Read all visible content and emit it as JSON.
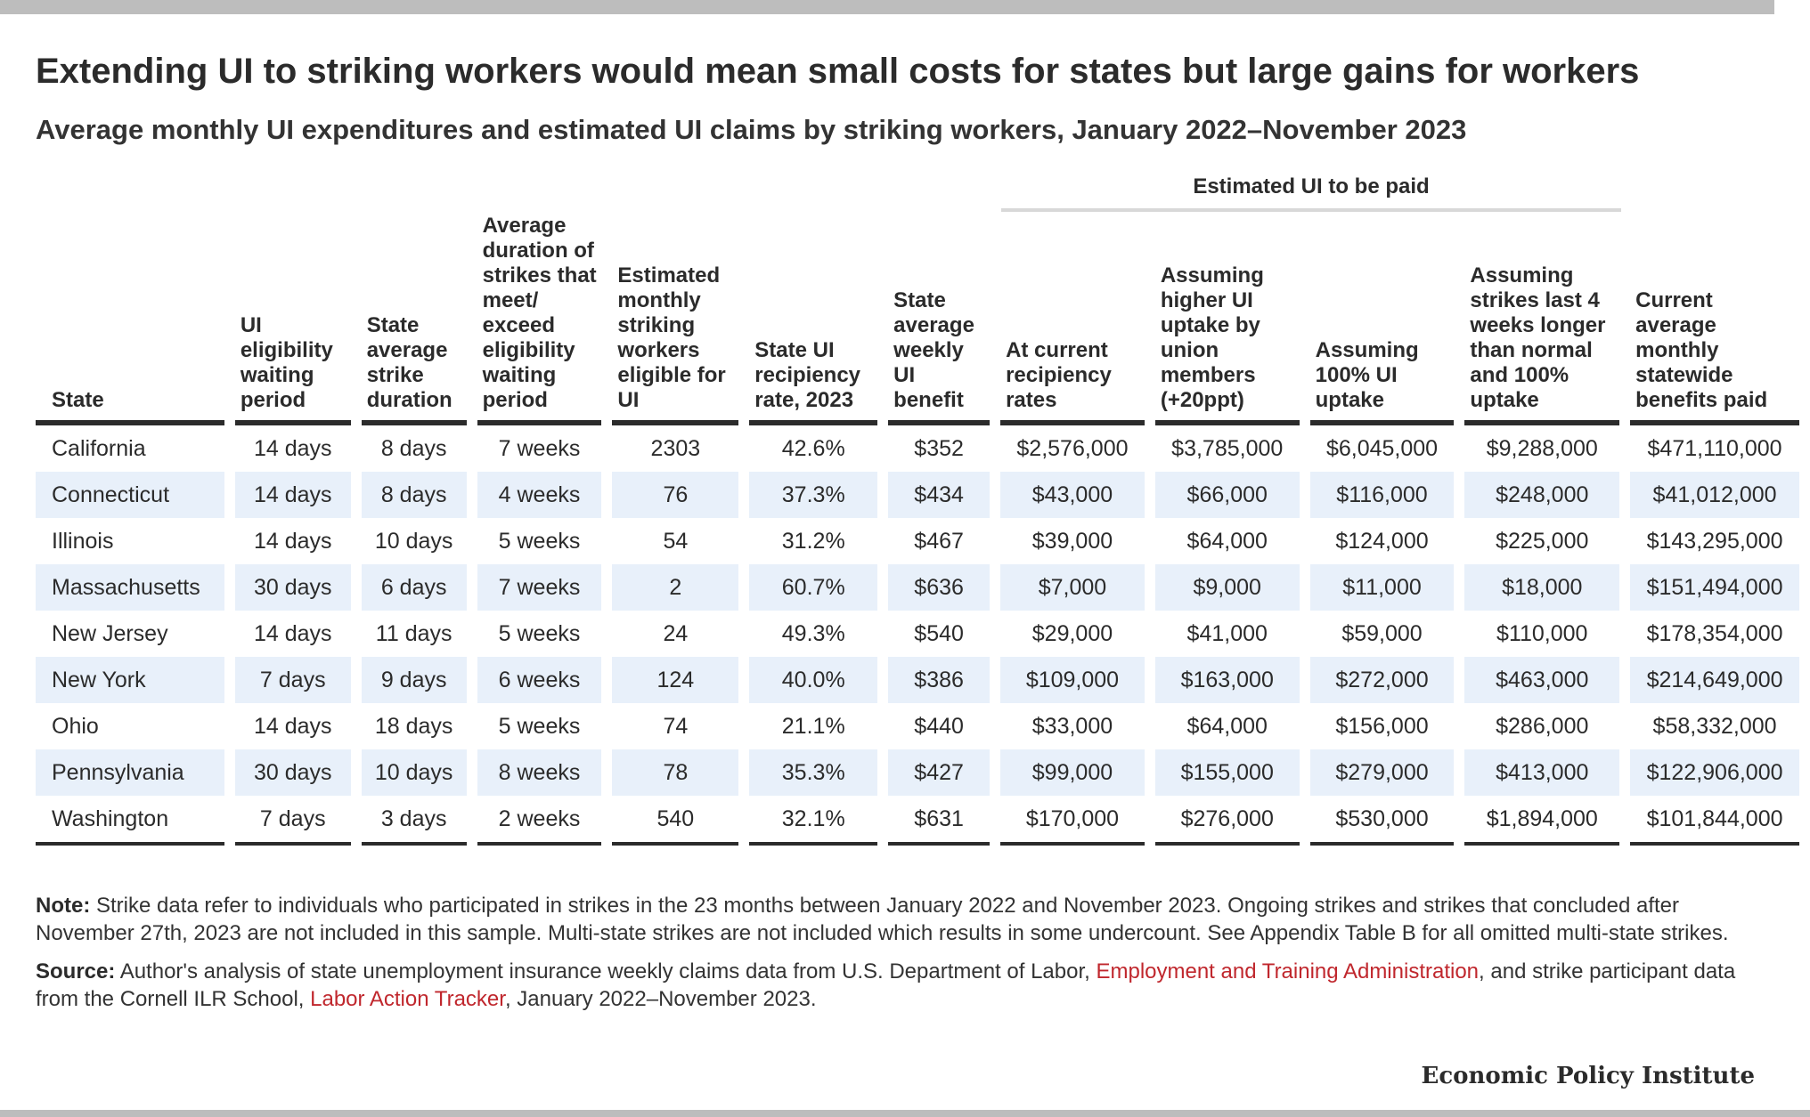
{
  "title": "Extending UI to striking workers would mean small costs for states but large gains for workers",
  "subtitle": "Average monthly UI expenditures and estimated UI claims by striking workers, January 2022–November 2023",
  "group_header": "Estimated UI to be paid",
  "columns": [
    "State",
    "UI eligibility waiting period",
    "State average strike duration",
    "Average duration of strikes that meet/ exceed eligibility waiting period",
    "Estimated monthly striking workers eligible for UI",
    "State UI recipiency rate, 2023",
    "State average weekly UI benefit",
    "At current recipiency rates",
    "Assuming higher UI uptake by union members (+20ppt)",
    "Assuming 100% UI uptake",
    "Assuming strikes last 4 weeks longer than normal and 100% uptake",
    "Current average monthly statewide benefits paid"
  ],
  "rows": [
    [
      "California",
      "14 days",
      "8 days",
      "7 weeks",
      "2303",
      "42.6%",
      "$352",
      "$2,576,000",
      "$3,785,000",
      "$6,045,000",
      "$9,288,000",
      "$471,110,000"
    ],
    [
      "Connecticut",
      "14 days",
      "8 days",
      "4 weeks",
      "76",
      "37.3%",
      "$434",
      "$43,000",
      "$66,000",
      "$116,000",
      "$248,000",
      "$41,012,000"
    ],
    [
      "Illinois",
      "14 days",
      "10 days",
      "5 weeks",
      "54",
      "31.2%",
      "$467",
      "$39,000",
      "$64,000",
      "$124,000",
      "$225,000",
      "$143,295,000"
    ],
    [
      "Massachusetts",
      "30 days",
      "6 days",
      "7 weeks",
      "2",
      "60.7%",
      "$636",
      "$7,000",
      "$9,000",
      "$11,000",
      "$18,000",
      "$151,494,000"
    ],
    [
      "New Jersey",
      "14 days",
      "11 days",
      "5 weeks",
      "24",
      "49.3%",
      "$540",
      "$29,000",
      "$41,000",
      "$59,000",
      "$110,000",
      "$178,354,000"
    ],
    [
      "New York",
      "7 days",
      "9 days",
      "6 weeks",
      "124",
      "40.0%",
      "$386",
      "$109,000",
      "$163,000",
      "$272,000",
      "$463,000",
      "$214,649,000"
    ],
    [
      "Ohio",
      "14 days",
      "18 days",
      "5 weeks",
      "74",
      "21.1%",
      "$440",
      "$33,000",
      "$64,000",
      "$156,000",
      "$286,000",
      "$58,332,000"
    ],
    [
      "Pennsylvania",
      "30 days",
      "10 days",
      "8 weeks",
      "78",
      "35.3%",
      "$427",
      "$99,000",
      "$155,000",
      "$279,000",
      "$413,000",
      "$122,906,000"
    ],
    [
      "Washington",
      "7 days",
      "3 days",
      "2 weeks",
      "540",
      "32.1%",
      "$631",
      "$170,000",
      "$276,000",
      "$530,000",
      "$1,894,000",
      "$101,844,000"
    ]
  ],
  "note": {
    "label": "Note:",
    "text": "Strike data refer to individuals who participated in strikes in the 23 months between January 2022 and November 2023. Ongoing strikes and strikes that concluded after November 27th, 2023 are not included in this sample. Multi-state strikes are not included which results in some undercount. See Appendix Table B for all omitted multi-state strikes."
  },
  "source": {
    "label": "Source:",
    "text1": "Author's analysis of state unemployment insurance weekly claims data from U.S. Department of Labor,",
    "link1": "Employment and Training Administration",
    "text2": ", and strike participant data from the Cornell ILR School,",
    "link2": "Labor Action Tracker",
    "text3": ", January 2022–November 2023."
  },
  "brand": "Economic Policy Institute",
  "colors": {
    "accent_link": "#c0272d",
    "row_band": "#e8f0fa",
    "rule": "#2b2b2b"
  }
}
